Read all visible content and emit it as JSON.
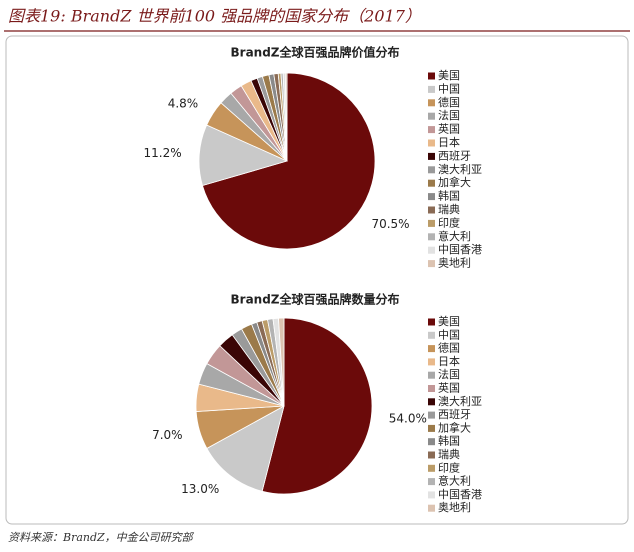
{
  "header": {
    "title": "图表19: BrandZ 世界前100 强品牌的国家分布（2017）"
  },
  "footer": {
    "source": "资料来源：BrandZ，中金公司研究部"
  },
  "chart_data": [
    {
      "type": "pie",
      "title": "BrandZ全球百强品牌价值分布",
      "categories": [
        "美国",
        "中国",
        "德国",
        "法国",
        "英国",
        "日本",
        "西班牙",
        "澳大利亚",
        "加拿大",
        "韩国",
        "瑞典",
        "印度",
        "意大利",
        "中国香港",
        "奥地利"
      ],
      "values": [
        70.5,
        11.2,
        4.8,
        2.5,
        2.3,
        2.0,
        1.2,
        1.0,
        1.2,
        0.9,
        0.8,
        0.5,
        0.4,
        0.4,
        0.3
      ],
      "value_labels": [
        "70.5%",
        "11.2%",
        "4.8%",
        null,
        null,
        null,
        null,
        null,
        null,
        null,
        null,
        null,
        null,
        null,
        null
      ],
      "colors": [
        "#6b0a0a",
        "#c9c9c9",
        "#c6945a",
        "#a8a8a8",
        "#c29797",
        "#e9b98a",
        "#3a0505",
        "#9a9a9a",
        "#9b7a4a",
        "#8a8a8a",
        "#8a6b55",
        "#bb9c68",
        "#b3b3b3",
        "#e2e2e2",
        "#dcc3b1"
      ]
    },
    {
      "type": "pie",
      "title": "BrandZ全球百强品牌数量分布",
      "categories": [
        "美国",
        "中国",
        "德国",
        "日本",
        "法国",
        "英国",
        "澳大利亚",
        "西班牙",
        "加拿大",
        "韩国",
        "瑞典",
        "印度",
        "意大利",
        "中国香港",
        "奥地利"
      ],
      "values": [
        54.0,
        13.0,
        7.0,
        5,
        4,
        4,
        3,
        2,
        2,
        1,
        1,
        1,
        1,
        1,
        1
      ],
      "value_labels": [
        "54.0%",
        "13.0%",
        "7.0%",
        null,
        null,
        null,
        null,
        null,
        null,
        null,
        null,
        null,
        null,
        null,
        null
      ],
      "colors": [
        "#6b0a0a",
        "#c9c9c9",
        "#c6945a",
        "#e9b98a",
        "#a8a8a8",
        "#c29797",
        "#3a0505",
        "#9a9a9a",
        "#9b7a4a",
        "#8a8a8a",
        "#8a6b55",
        "#bb9c68",
        "#b3b3b3",
        "#e2e2e2",
        "#dcc3b1"
      ]
    }
  ]
}
